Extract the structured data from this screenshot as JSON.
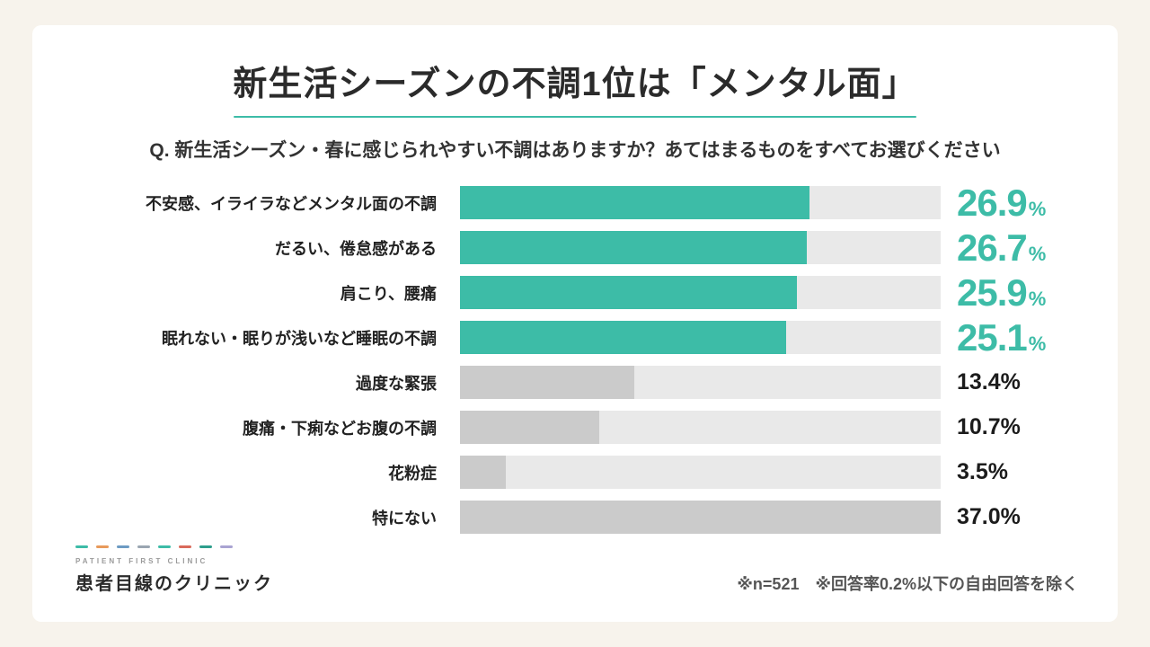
{
  "colors": {
    "accent": "#3dbca7",
    "bar_gray": "#cbcbcb",
    "track": "#e9e9e9",
    "background": "#f7f3ec"
  },
  "header": {
    "title": "新生活シーズンの不調1位は「メンタル面」",
    "question": "Q. 新生活シーズン・春に感じられやすい不調はありますか？あてはまるものをすべてお選びください"
  },
  "chart_data": {
    "type": "bar",
    "orientation": "horizontal",
    "title": "新生活シーズンの不調1位は「メンタル面」",
    "xlabel": "",
    "ylabel": "",
    "xlim": [
      0,
      37.0
    ],
    "grid": false,
    "legend": "none",
    "categories": [
      "不安感、イライラなどメンタル面の不調",
      "だるい、倦怠感がある",
      "肩こり、腰痛",
      "眠れない・眠りが浅いなど睡眠の不調",
      "過度な緊張",
      "腹痛・下痢などお腹の不調",
      "花粉症",
      "特にない"
    ],
    "values": [
      26.9,
      26.7,
      25.9,
      25.1,
      13.4,
      10.7,
      3.5,
      37.0
    ],
    "items": [
      {
        "label": "不安感、イライラなどメンタル面の不調",
        "value": 26.9,
        "num": "26.9",
        "unit": "%",
        "highlight": true
      },
      {
        "label": "だるい、倦怠感がある",
        "value": 26.7,
        "num": "26.7",
        "unit": "%",
        "highlight": true
      },
      {
        "label": "肩こり、腰痛",
        "value": 25.9,
        "num": "25.9",
        "unit": "%",
        "highlight": true
      },
      {
        "label": "眠れない・眠りが浅いなど睡眠の不調",
        "value": 25.1,
        "num": "25.1",
        "unit": "%",
        "highlight": true
      },
      {
        "label": "過度な緊張",
        "value": 13.4,
        "num": "13.4",
        "unit": "%",
        "highlight": false
      },
      {
        "label": "腹痛・下痢などお腹の不調",
        "value": 10.7,
        "num": "10.7",
        "unit": "%",
        "highlight": false
      },
      {
        "label": "花粉症",
        "value": 3.5,
        "num": "3.5",
        "unit": "%",
        "highlight": false
      },
      {
        "label": "特にない",
        "value": 37.0,
        "num": "37.0",
        "unit": "%",
        "highlight": false
      }
    ]
  },
  "footer": {
    "logo_small": "PATIENT FIRST CLINIC",
    "logo_name": "患者目線のクリニック",
    "logo_dash_colors": [
      "#3dbca7",
      "#e89a5b",
      "#6d9bc3",
      "#9aa5b1",
      "#3dbca7",
      "#d96a5b",
      "#2e9e8c",
      "#a9a3d2"
    ],
    "note": "※n=521　※回答率0.2%以下の自由回答を除く"
  }
}
